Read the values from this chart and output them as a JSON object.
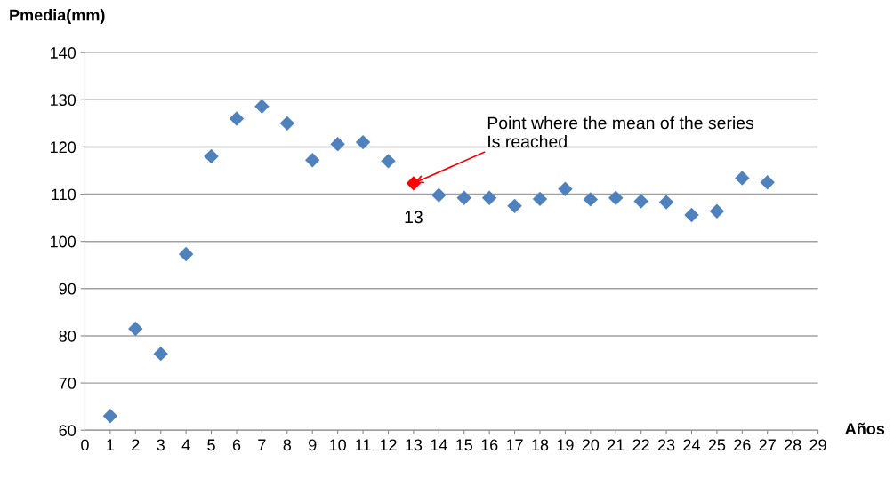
{
  "chart_data": {
    "type": "scatter",
    "xlabel": "Años",
    "ylabel": "Pmedia(mm)",
    "x": [
      1,
      2,
      3,
      4,
      5,
      6,
      7,
      8,
      9,
      10,
      11,
      12,
      13,
      14,
      15,
      16,
      17,
      18,
      19,
      20,
      21,
      22,
      23,
      24,
      25,
      26,
      27
    ],
    "values": [
      63,
      81.5,
      76.2,
      97.3,
      118,
      126,
      128.6,
      125,
      117.2,
      120.6,
      121,
      117,
      112.3,
      109.8,
      109.2,
      109.2,
      107.5,
      109,
      111.1,
      108.9,
      109.2,
      108.5,
      108.3,
      105.6,
      106.4,
      113.4,
      112.5
    ],
    "colors": [
      "#4f81bd",
      "#4f81bd",
      "#4f81bd",
      "#4f81bd",
      "#4f81bd",
      "#4f81bd",
      "#4f81bd",
      "#4f81bd",
      "#4f81bd",
      "#4f81bd",
      "#4f81bd",
      "#4f81bd",
      "#ff0000",
      "#4f81bd",
      "#4f81bd",
      "#4f81bd",
      "#4f81bd",
      "#4f81bd",
      "#4f81bd",
      "#4f81bd",
      "#4f81bd",
      "#4f81bd",
      "#4f81bd",
      "#4f81bd",
      "#4f81bd",
      "#4f81bd",
      "#4f81bd"
    ],
    "xlim": [
      0,
      29
    ],
    "xticks": [
      0,
      1,
      2,
      3,
      4,
      5,
      6,
      7,
      8,
      9,
      10,
      11,
      12,
      13,
      14,
      15,
      16,
      17,
      18,
      19,
      20,
      21,
      22,
      23,
      24,
      25,
      26,
      27,
      28,
      29
    ],
    "ylim": [
      60,
      140
    ],
    "yticks": [
      60,
      70,
      80,
      90,
      100,
      110,
      120,
      130,
      140
    ],
    "grid": "y",
    "marker": "diamond",
    "annotations": [
      {
        "text": "Point where the mean of the series\nIs reached",
        "x": 13,
        "y": 112.3
      },
      {
        "text": "13",
        "x": 13,
        "y": 112.3
      }
    ]
  }
}
